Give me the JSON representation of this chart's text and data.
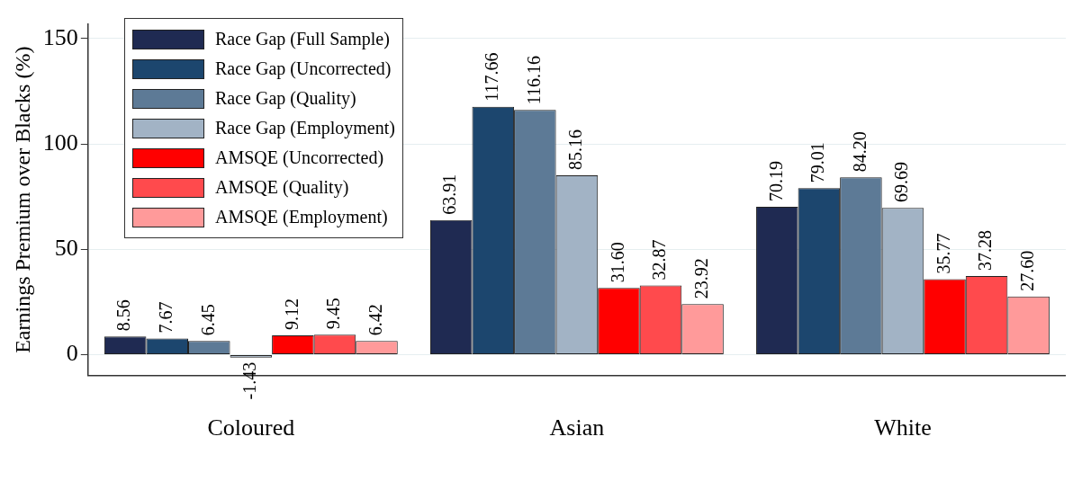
{
  "chart_data": {
    "type": "bar",
    "ylabel": "Earnings Premium over Blacks (%)",
    "categories": [
      "Coloured",
      "Asian",
      "White"
    ],
    "series": [
      {
        "name": "Race Gap (Full Sample)",
        "color": "#1f2a52",
        "values": [
          8.56,
          63.91,
          70.19
        ],
        "value_labels": [
          "8.56",
          "63.91",
          "70.19"
        ]
      },
      {
        "name": "Race Gap (Uncorrected)",
        "color": "#1c466e",
        "values": [
          7.67,
          117.66,
          79.01
        ],
        "value_labels": [
          "7.67",
          "117.66",
          "79.01"
        ]
      },
      {
        "name": "Race Gap (Quality)",
        "color": "#5d7a96",
        "values": [
          6.45,
          116.16,
          84.2
        ],
        "value_labels": [
          "6.45",
          "116.16",
          "84.20"
        ]
      },
      {
        "name": "Race Gap (Employment)",
        "color": "#a2b3c5",
        "values": [
          -1.43,
          85.16,
          69.69
        ],
        "value_labels": [
          "-1.43",
          "85.16",
          "69.69"
        ]
      },
      {
        "name": "AMSQE (Uncorrected)",
        "color": "#ff0000",
        "values": [
          9.12,
          31.6,
          35.77
        ],
        "value_labels": [
          "9.12",
          "31.60",
          "35.77"
        ]
      },
      {
        "name": "AMSQE (Quality)",
        "color": "#ff4a4d",
        "values": [
          9.45,
          32.87,
          37.28
        ],
        "value_labels": [
          "9.45",
          "32.87",
          "37.28"
        ]
      },
      {
        "name": "AMSQE (Employment)",
        "color": "#ff9a9a",
        "values": [
          6.42,
          23.92,
          27.6
        ],
        "value_labels": [
          "6.42",
          "23.92",
          "27.60"
        ]
      }
    ],
    "ylim": [
      -10,
      157
    ],
    "yticks": [
      0,
      50,
      100,
      150
    ],
    "grid": "y",
    "legend": "top left"
  }
}
